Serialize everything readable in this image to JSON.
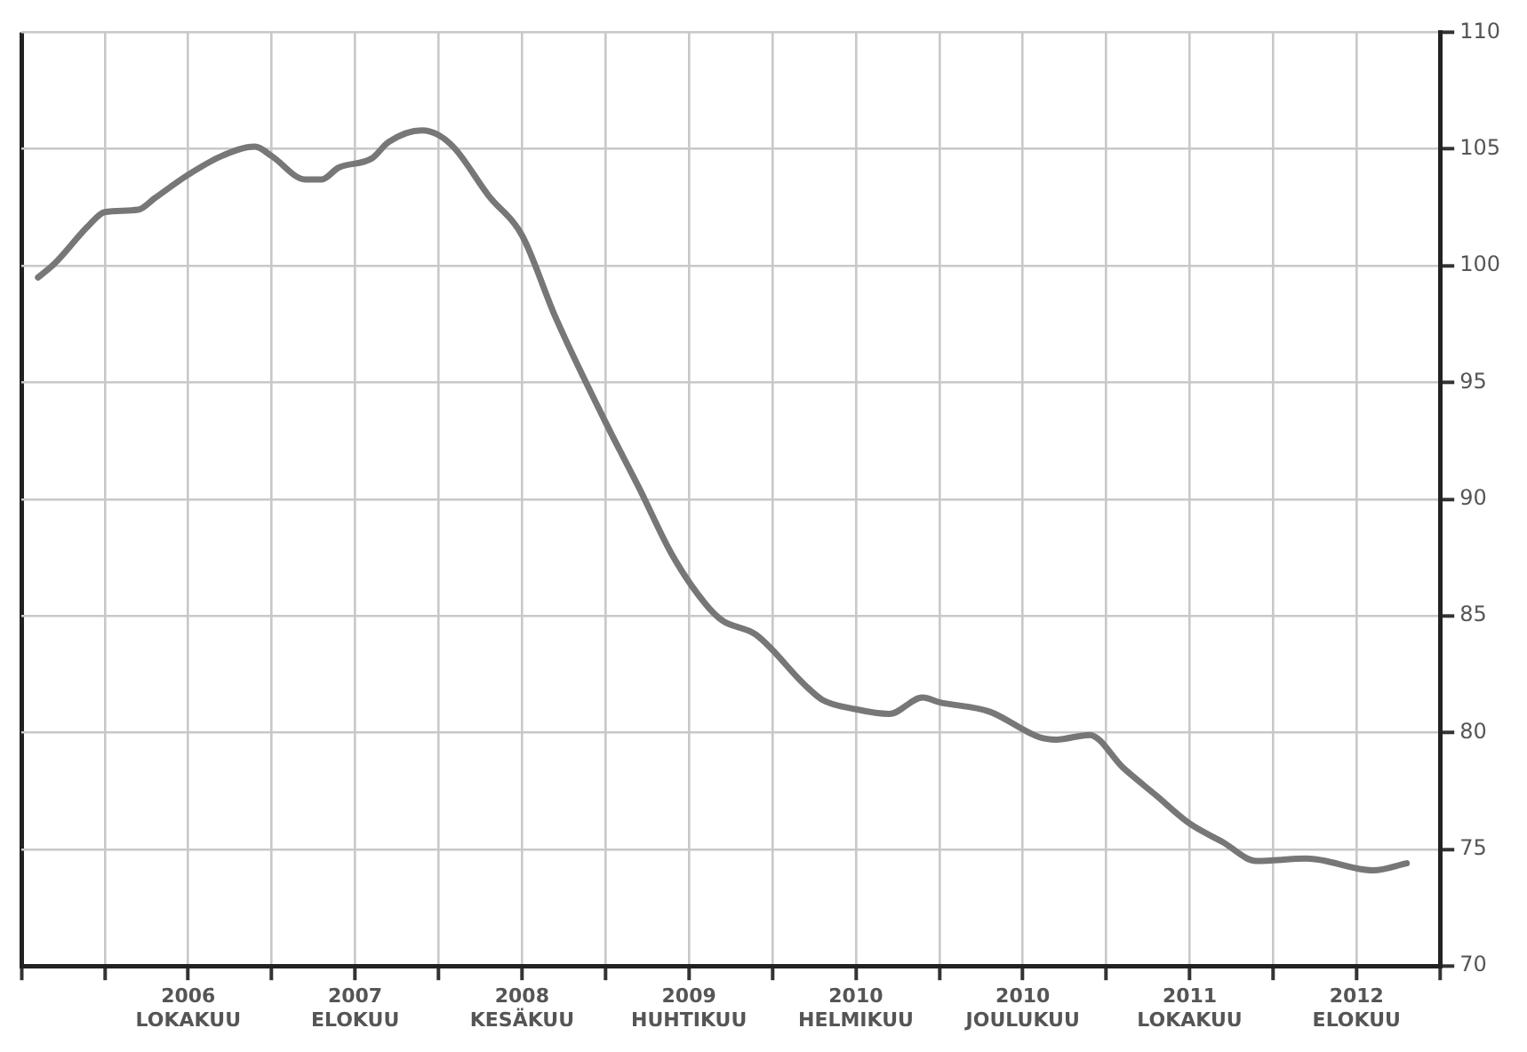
{
  "chart_data": {
    "type": "line",
    "x": [
      "2006-01",
      "2006-02",
      "2006-04",
      "2006-05",
      "2006-07",
      "2006-08",
      "2006-10",
      "2006-12",
      "2007-02",
      "2007-03",
      "2007-05",
      "2007-06",
      "2007-07",
      "2007-09",
      "2007-10",
      "2007-12",
      "2008-01",
      "2008-02",
      "2008-04",
      "2008-06",
      "2008-08",
      "2008-11",
      "2009-01",
      "2009-03",
      "2009-05",
      "2009-06",
      "2009-08",
      "2009-11",
      "2009-12",
      "2010-02",
      "2010-04",
      "2010-06",
      "2010-07",
      "2010-10",
      "2011-01",
      "2011-02",
      "2011-04",
      "2011-06",
      "2011-08",
      "2011-10",
      "2011-12",
      "2012-02",
      "2012-05",
      "2012-09",
      "2012-11"
    ],
    "series": [
      {
        "color": "#777777",
        "values": [
          99.5,
          100.1,
          101.7,
          102.3,
          102.4,
          102.9,
          103.9,
          104.7,
          105.1,
          104.7,
          103.7,
          103.7,
          104.2,
          104.6,
          105.3,
          105.8,
          105.6,
          105.0,
          103.0,
          101.3,
          97.8,
          93.3,
          90.5,
          87.6,
          85.5,
          84.8,
          84.2,
          82.0,
          81.4,
          81.0,
          80.8,
          81.5,
          81.3,
          80.9,
          79.8,
          79.7,
          79.9,
          78.5,
          77.3,
          76.1,
          75.3,
          74.5,
          74.6,
          74.1,
          74.4
        ]
      }
    ],
    "xlim": [
      "2005-12",
      "2013-01"
    ],
    "xticks": [
      {
        "value": "2005-12",
        "label": null
      },
      {
        "value": "2006-05",
        "label": null
      },
      {
        "value": "2006-10",
        "label": "2006 LOKAKUU"
      },
      {
        "value": "2007-03",
        "label": null
      },
      {
        "value": "2007-08",
        "label": "2007 ELOKUU"
      },
      {
        "value": "2008-01",
        "label": null
      },
      {
        "value": "2008-06",
        "label": "2008 KESÄKUU"
      },
      {
        "value": "2008-11",
        "label": null
      },
      {
        "value": "2009-04",
        "label": "2009 HUHTIKUU"
      },
      {
        "value": "2009-09",
        "label": null
      },
      {
        "value": "2010-02",
        "label": "2010 HELMIKUU"
      },
      {
        "value": "2010-07",
        "label": null
      },
      {
        "value": "2010-12",
        "label": "2010 JOULUKUU"
      },
      {
        "value": "2011-05",
        "label": null
      },
      {
        "value": "2011-10",
        "label": "2011 LOKAKUU"
      },
      {
        "value": "2012-03",
        "label": null
      },
      {
        "value": "2012-08",
        "label": "2012 ELOKUU"
      },
      {
        "value": "2013-01",
        "label": null
      }
    ],
    "ylim": [
      70,
      110
    ],
    "yticks": [
      70,
      75,
      80,
      85,
      90,
      95,
      100,
      105,
      110
    ],
    "grid": true,
    "marker": "none",
    "line_style": "solid"
  }
}
